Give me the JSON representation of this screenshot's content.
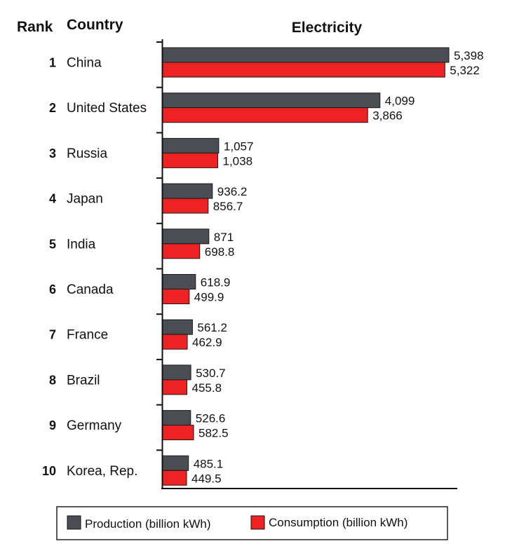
{
  "chart_data": {
    "type": "bar",
    "orientation": "horizontal",
    "title": "Electricity",
    "header_rank": "Rank",
    "header_country": "Country",
    "ranks": [
      "1",
      "2",
      "3",
      "4",
      "5",
      "6",
      "7",
      "8",
      "9",
      "10"
    ],
    "categories": [
      "China",
      "United States",
      "Russia",
      "Japan",
      "India",
      "Canada",
      "France",
      "Brazil",
      "Germany",
      "Korea, Rep."
    ],
    "series": [
      {
        "name": "Production (billion kWh)",
        "color": "#4a4d52",
        "values": [
          5398,
          4099,
          1057,
          936.2,
          871,
          618.9,
          561.2,
          530.7,
          526.6,
          485.1
        ],
        "labels": [
          "5,398",
          "4,099",
          "1,057",
          "936.2",
          "871",
          "618.9",
          "561.2",
          "530.7",
          "526.6",
          "485.1"
        ]
      },
      {
        "name": "Consumption (billion kWh)",
        "color": "#ee2222",
        "values": [
          5322,
          3866,
          1038,
          856.7,
          698.8,
          499.9,
          462.9,
          455.8,
          582.5,
          449.5
        ],
        "labels": [
          "5,322",
          "3,866",
          "1,038",
          "856.7",
          "698.8",
          "499.9",
          "462.9",
          "455.8",
          "582.5",
          "449.5"
        ]
      }
    ],
    "xlim": [
      0,
      5398
    ],
    "grid": false,
    "legend_position": "bottom"
  }
}
